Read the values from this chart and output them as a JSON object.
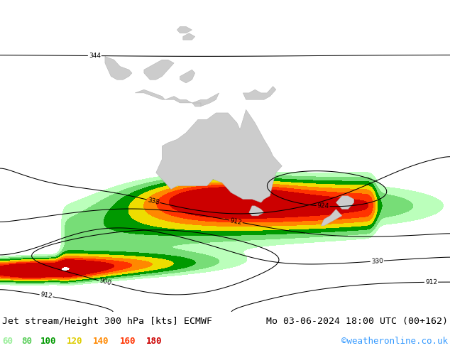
{
  "title_left": "Jet stream/Height 300 hPa [kts] ECMWF",
  "title_right": "Mo 03-06-2024 18:00 UTC (00+162)",
  "credit": "©weatheronline.co.uk",
  "legend_values": [
    "60",
    "80",
    "100",
    "120",
    "140",
    "160",
    "180"
  ],
  "legend_colors": [
    "#99ee99",
    "#55cc55",
    "#009900",
    "#ddcc00",
    "#ff8800",
    "#ff3300",
    "#cc0000"
  ],
  "sea_color": "#d8d8d8",
  "land_color": "#cccccc",
  "land_outline": "#aaaaaa",
  "contour_color": "black",
  "title_fontsize": 9.5,
  "credit_color": "#3399ff",
  "wind_levels": [
    60,
    80,
    100,
    120,
    140,
    160,
    180,
    250
  ],
  "wind_colors": [
    "#bbffbb",
    "#77dd77",
    "#009900",
    "#eedd00",
    "#ff8800",
    "#ff3300",
    "#cc0000"
  ],
  "map_extent": [
    60,
    210,
    -72,
    22
  ]
}
